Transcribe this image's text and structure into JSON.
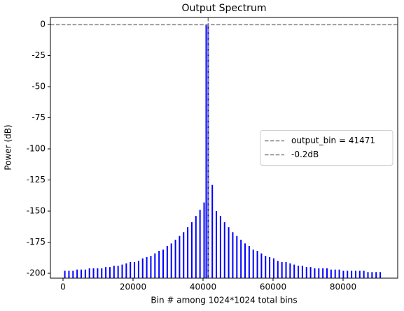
{
  "chart_data": {
    "type": "stem",
    "title": "Output Spectrum",
    "x_label": "Bin # among 1024*1024 total bins",
    "y_label": "Power (dB)",
    "xlim": [
      -3600,
      95600
    ],
    "ylim": [
      -203.9,
      5.6
    ],
    "xticks": [
      0,
      20000,
      40000,
      60000,
      80000
    ],
    "yticks": [
      0,
      -25,
      -50,
      -75,
      -100,
      -125,
      -150,
      -175,
      -200
    ],
    "legend": "center right",
    "grid": false,
    "series": [
      {
        "color": "#0000ff",
        "x": [
          521,
          1691,
          2861,
          4031,
          5201,
          6371,
          7541,
          8711,
          9881,
          11051,
          12221,
          13391,
          14561,
          15731,
          16901,
          18071,
          19241,
          20411,
          21581,
          22751,
          23921,
          25091,
          26261,
          27431,
          28601,
          29771,
          30941,
          32111,
          33281,
          34451,
          35621,
          36791,
          37961,
          39131,
          40301,
          40900,
          41471,
          42641,
          43811,
          44981,
          46151,
          47321,
          48491,
          49661,
          50831,
          52001,
          53171,
          54341,
          55511,
          56681,
          57851,
          59021,
          60191,
          61361,
          62531,
          63701,
          64871,
          66041,
          67211,
          68381,
          69551,
          70721,
          71891,
          73061,
          74231,
          75401,
          76571,
          77741,
          78911,
          80081,
          81251,
          82421,
          83591,
          84761,
          85931,
          87101,
          88271,
          89441,
          90611
        ],
        "values": [
          -198,
          -198,
          -198,
          -197,
          -197,
          -197,
          -196,
          -196,
          -196,
          -196,
          -195,
          -195,
          -194,
          -194,
          -193,
          -192,
          -191,
          -191,
          -190,
          -188,
          -187,
          -186,
          -184,
          -182,
          -181,
          -178,
          -176,
          -173,
          -170,
          -167,
          -163,
          -159,
          -154,
          -149,
          -143,
          0,
          -0.2,
          -129,
          -150,
          -154,
          -159,
          -163,
          -167,
          -170,
          -173,
          -176,
          -178,
          -181,
          -182,
          -184,
          -186,
          -187,
          -188,
          -190,
          -191,
          -191,
          -192,
          -193,
          -194,
          -194,
          -195,
          -195,
          -196,
          -196,
          -196,
          -196,
          -197,
          -197,
          -197,
          -198,
          -198,
          -198,
          -198,
          -198,
          -198,
          -199,
          -199,
          -199,
          -199
        ]
      }
    ],
    "reference_lines": [
      {
        "name": "output_bin = 41471",
        "axis": "x",
        "value": 41471,
        "color": "#808080"
      },
      {
        "name": "-0.2dB",
        "axis": "y",
        "value": -0.2,
        "color": "#808080"
      }
    ]
  }
}
